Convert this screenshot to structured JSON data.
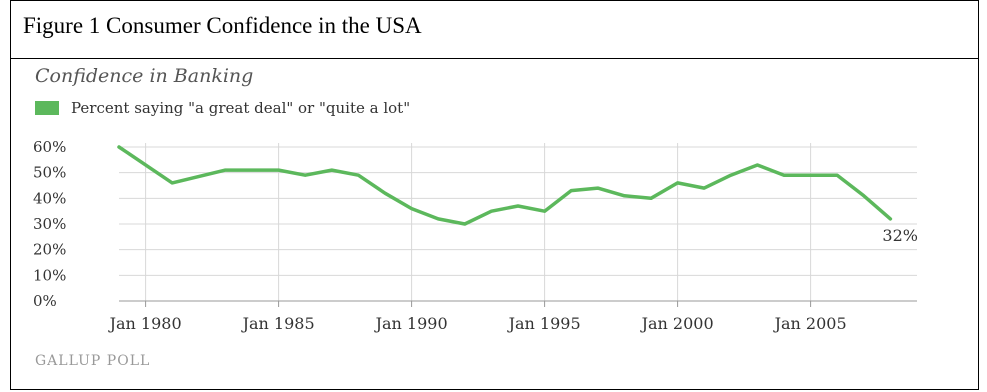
{
  "caption": "Figure 1 Consumer Confidence in the USA",
  "source": "GALLUP POLL",
  "colors": {
    "line": "#5cb85c",
    "grid": "#d8d8d8",
    "axis": "#999999"
  },
  "chart_data": {
    "type": "line",
    "title": "Confidence in Banking",
    "xlabel": "",
    "ylabel": "",
    "legend_position": "top-left",
    "grid": true,
    "ylim": [
      0,
      60
    ],
    "yticks": [
      0,
      10,
      20,
      30,
      40,
      50,
      60
    ],
    "ytick_labels": [
      "0%",
      "10%",
      "20%",
      "30%",
      "40%",
      "50%",
      "60%"
    ],
    "xlim": [
      1979,
      2009
    ],
    "xticks": [
      1980,
      1985,
      1990,
      1995,
      2000,
      2005
    ],
    "xtick_labels": [
      "Jan 1980",
      "Jan 1985",
      "Jan 1990",
      "Jan 1995",
      "Jan 2000",
      "Jan 2005"
    ],
    "series": [
      {
        "name": "Percent saying \"a great deal\" or \"quite a lot\"",
        "x": [
          1979,
          1981,
          1983,
          1984,
          1985,
          1986,
          1987,
          1988,
          1989,
          1990,
          1991,
          1992,
          1993,
          1994,
          1995,
          1996,
          1997,
          1998,
          1999,
          2000,
          2001,
          2002,
          2003,
          2004,
          2005,
          2006,
          2007,
          2008
        ],
        "y": [
          60,
          46,
          51,
          51,
          51,
          49,
          51,
          49,
          42,
          36,
          32,
          30,
          35,
          37,
          35,
          43,
          44,
          41,
          40,
          46,
          44,
          49,
          53,
          49,
          49,
          49,
          41,
          32
        ]
      }
    ],
    "annotations": [
      {
        "text": "32%",
        "x": 2008,
        "y": 32
      }
    ]
  }
}
